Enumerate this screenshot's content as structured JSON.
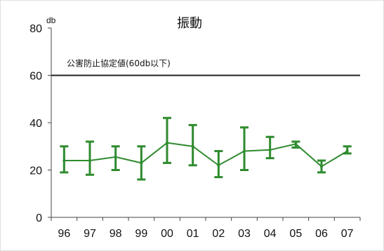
{
  "chart_data": {
    "type": "line",
    "title": "振動",
    "ylabel": "db",
    "ylim": [
      0,
      80
    ],
    "yticks": [
      0,
      20,
      40,
      60,
      80
    ],
    "grid": false,
    "categories": [
      "96",
      "97",
      "98",
      "99",
      "00",
      "01",
      "02",
      "03",
      "04",
      "05",
      "06",
      "07"
    ],
    "series": [
      {
        "values": [
          24,
          24,
          25.5,
          23,
          31.5,
          30,
          22,
          28,
          28.5,
          31,
          21.5,
          28
        ],
        "min": [
          19,
          18,
          20,
          16,
          23,
          22,
          17,
          20,
          25,
          29.5,
          19,
          27
        ],
        "max": [
          30,
          32,
          30,
          30,
          42,
          39,
          28,
          38,
          34,
          32,
          24,
          30
        ]
      }
    ],
    "reference_line": {
      "value": 60,
      "label": "公害防止協定値(60db以下)"
    },
    "colors": {
      "series": "#2e8b2e",
      "reference": "#222222",
      "axis": "#444444"
    }
  }
}
